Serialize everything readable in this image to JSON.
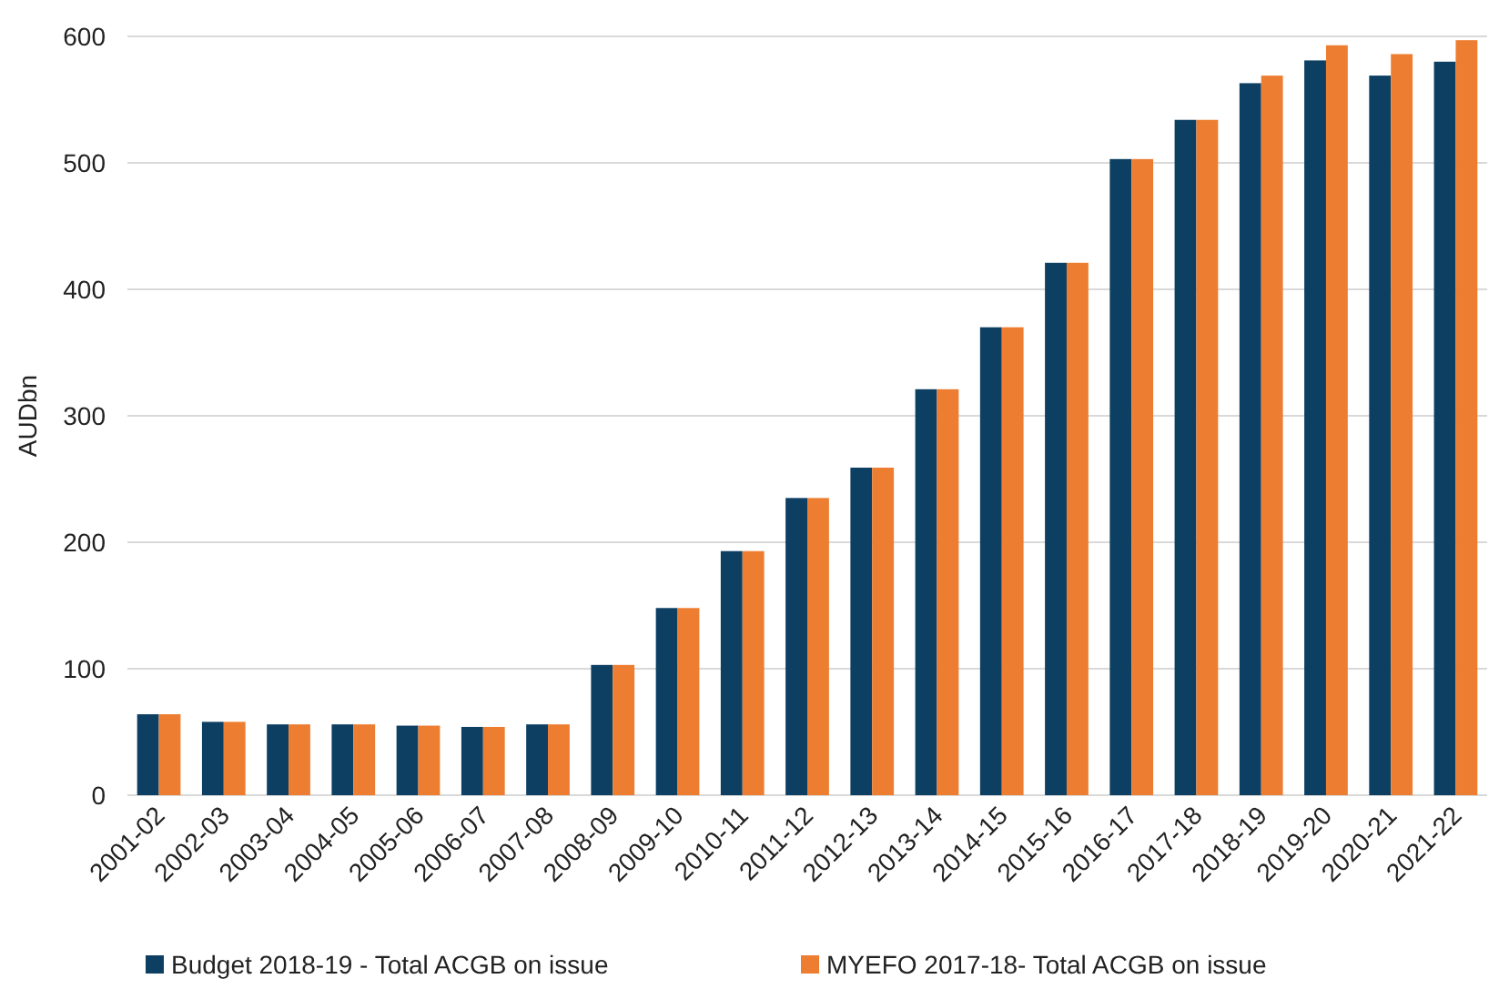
{
  "chart_data": {
    "type": "bar",
    "ylabel": "AUDbn",
    "categories": [
      "2001-02",
      "2002-03",
      "2003-04",
      "2004-05",
      "2005-06",
      "2006-07",
      "2007-08",
      "2008-09",
      "2009-10",
      "2010-11",
      "2011-12",
      "2012-13",
      "2013-14",
      "2014-15",
      "2015-16",
      "2016-17",
      "2017-18",
      "2018-19",
      "2019-20",
      "2020-21",
      "2021-22"
    ],
    "series": [
      {
        "name": "Budget 2018-19 - Total ACGB on issue",
        "color": "#0d3f63",
        "values": [
          64,
          58,
          56,
          56,
          55,
          54,
          56,
          103,
          148,
          193,
          235,
          259,
          321,
          370,
          421,
          503,
          534,
          563,
          581,
          569,
          580
        ]
      },
      {
        "name": "MYEFO 2017-18- Total ACGB on issue",
        "color": "#ed7d31",
        "values": [
          64,
          58,
          56,
          56,
          55,
          54,
          56,
          103,
          148,
          193,
          235,
          259,
          321,
          370,
          421,
          503,
          534,
          569,
          593,
          586,
          597
        ]
      }
    ],
    "ylim": [
      0,
      600
    ],
    "yticks": [
      0,
      100,
      200,
      300,
      400,
      500,
      600
    ],
    "grid": "y",
    "legend": "bottom"
  }
}
